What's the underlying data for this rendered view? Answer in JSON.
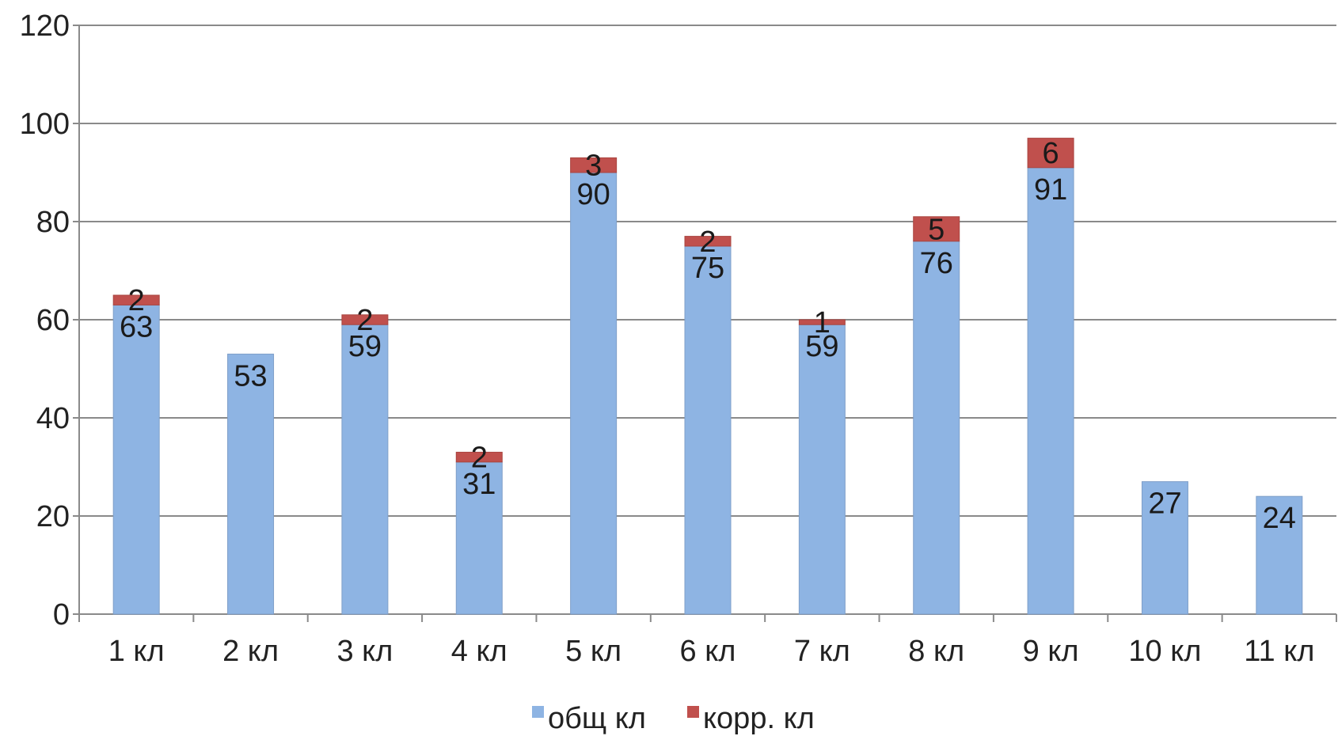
{
  "chart_data": {
    "type": "bar",
    "stacked": true,
    "categories": [
      "1 кл",
      "2 кл",
      "3 кл",
      "4 кл",
      "5 кл",
      "6 кл",
      "7 кл",
      "8 кл",
      "9 кл",
      "10 кл",
      "11 кл"
    ],
    "series": [
      {
        "name": "общ кл",
        "color": "#8eb4e3",
        "values": [
          63,
          53,
          59,
          31,
          90,
          75,
          59,
          76,
          91,
          27,
          24
        ]
      },
      {
        "name": "корр. кл",
        "color": "#c0504d",
        "values": [
          2,
          null,
          2,
          2,
          3,
          2,
          1,
          5,
          6,
          null,
          null
        ]
      }
    ],
    "ylim": [
      0,
      120
    ],
    "yticks": [
      0,
      20,
      40,
      60,
      80,
      100,
      120
    ],
    "grid": true,
    "legend_position": "bottom",
    "title": "",
    "xlabel": "",
    "ylabel": ""
  }
}
